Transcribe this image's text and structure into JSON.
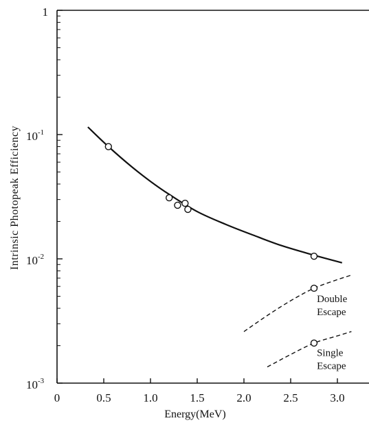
{
  "chart_data": {
    "type": "line",
    "xlabel": "Energy(MeV)",
    "ylabel": "Intrinsic Photopeak Efficiency",
    "xlim": [
      0,
      3.15
    ],
    "ylim": [
      0.001,
      1
    ],
    "yscale": "log",
    "grid": false,
    "x_ticks": [
      "0",
      "0.5",
      "1.0",
      "1.5",
      "2.0",
      "2.5",
      "3.0"
    ],
    "y_ticks": [
      {
        "value": 1,
        "label": "1"
      },
      {
        "value": 0.1,
        "base": "10",
        "exp": "-1"
      },
      {
        "value": 0.01,
        "base": "10",
        "exp": "-2"
      },
      {
        "value": 0.001,
        "base": "10",
        "exp": "-3"
      }
    ],
    "series": [
      {
        "style": "solid",
        "curve": [
          [
            0.33,
            0.115
          ],
          [
            0.55,
            0.08
          ],
          [
            0.8,
            0.055
          ],
          [
            1.0,
            0.042
          ],
          [
            1.2,
            0.033
          ],
          [
            1.5,
            0.024
          ],
          [
            1.8,
            0.019
          ],
          [
            2.1,
            0.0155
          ],
          [
            2.4,
            0.0128
          ],
          [
            2.75,
            0.0107
          ],
          [
            3.05,
            0.0093
          ]
        ],
        "points": [
          [
            0.55,
            0.08
          ],
          [
            1.2,
            0.031
          ],
          [
            1.29,
            0.027
          ],
          [
            1.37,
            0.028
          ],
          [
            1.4,
            0.025
          ],
          [
            2.75,
            0.0105
          ]
        ]
      },
      {
        "name": "Double Escape",
        "style": "dashed",
        "curve": [
          [
            2.0,
            0.0026
          ],
          [
            2.25,
            0.0035
          ],
          [
            2.5,
            0.0046
          ],
          [
            2.75,
            0.0058
          ],
          [
            3.0,
            0.0068
          ],
          [
            3.15,
            0.0074
          ]
        ],
        "points": [
          [
            2.75,
            0.0058
          ]
        ]
      },
      {
        "name": "Single Escape",
        "style": "dashed",
        "curve": [
          [
            2.25,
            0.00135
          ],
          [
            2.5,
            0.0017
          ],
          [
            2.75,
            0.0021
          ],
          [
            3.0,
            0.0024
          ],
          [
            3.15,
            0.0026
          ]
        ],
        "points": [
          [
            2.75,
            0.0021
          ]
        ]
      }
    ],
    "annotations": [
      {
        "lines": [
          "Double",
          "Escape"
        ],
        "x": 2.78,
        "y": 0.0045
      },
      {
        "lines": [
          "Single",
          "Escape"
        ],
        "x": 2.78,
        "y": 0.00165
      }
    ]
  }
}
